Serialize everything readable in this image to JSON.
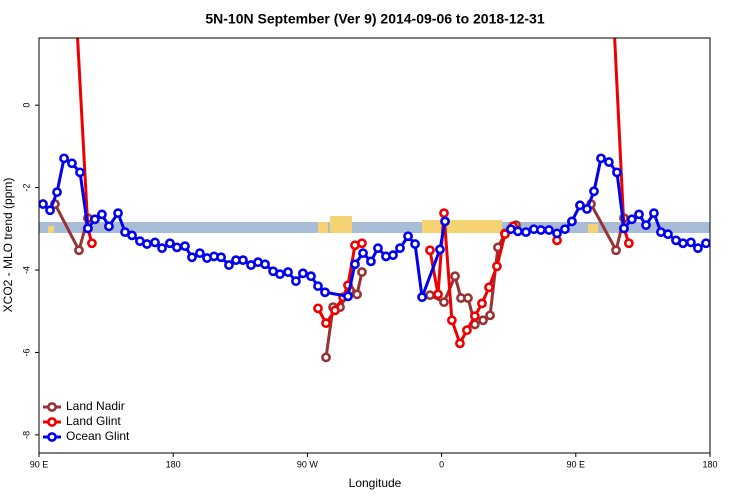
{
  "chart_data": {
    "type": "line",
    "title": "5N-10N September (Ver 9)   2014-09-06 to 2018-12-31",
    "x_label": "Longitude",
    "y_label": "XCO2 - MLO trend (ppm)",
    "xlim": [
      90,
      540
    ],
    "ylim": [
      -8.44,
      1.63
    ],
    "xticks": [
      {
        "value": 90,
        "label": "90 E"
      },
      {
        "value": 180,
        "label": "180"
      },
      {
        "value": 270,
        "label": "90 W"
      },
      {
        "value": 360,
        "label": "0"
      },
      {
        "value": 450,
        "label": "90 E"
      },
      {
        "value": 540,
        "label": "180"
      }
    ],
    "yticks": [
      0,
      -2,
      -4,
      -6,
      -8
    ],
    "legend": "bottom-left",
    "series": [
      {
        "name": "Land Nadir",
        "color": "#993333",
        "x": [
          100.7,
          116.8,
          122.8,
          null,
          282.5,
          287.2,
          291.9,
          298.6,
          303.3,
          306.6,
          null,
          352.2,
          361.6,
          369.0,
          373.0,
          377.7,
          382.3,
          387.8,
          392.5,
          397.8,
          402.5,
          409.9,
          null,
          460.2,
          477.0,
          482.3
        ],
        "values": [
          -2.4,
          -3.52,
          -2.74,
          null,
          -6.12,
          -4.9,
          -4.9,
          -4.49,
          -4.59,
          -4.05,
          null,
          -4.61,
          -4.78,
          -4.15,
          -4.68,
          -4.68,
          -5.32,
          -5.22,
          -5.1,
          -3.45,
          -3.11,
          -2.91,
          null,
          -2.4,
          -3.52,
          -2.74
        ]
      },
      {
        "name": "Land Glint",
        "color": "#ee0000",
        "x": [
          110.8,
          122.8,
          125.5,
          null,
          277.1,
          282.5,
          288.5,
          293.9,
          297.2,
          301.9,
          306.6,
          null,
          352.2,
          357.6,
          361.6,
          366.9,
          372.3,
          377.0,
          382.3,
          387.1,
          391.8,
          397.1,
          402.5,
          407.9,
          null,
          437.4,
          null,
          471.5,
          482.3,
          485.6
        ],
        "values": [
          5,
          -2.99,
          -3.35,
          null,
          -4.93,
          -5.29,
          -4.98,
          -4.66,
          -4.37,
          -3.4,
          -3.35,
          null,
          -3.52,
          -4.59,
          -2.62,
          -5.22,
          -5.78,
          -5.46,
          -5.12,
          -4.81,
          -4.42,
          -3.91,
          -3.13,
          -2.94,
          null,
          -3.28,
          null,
          5,
          -2.99,
          -3.35
        ]
      },
      {
        "name": "Ocean Glint",
        "color": "#0000ee",
        "x": [
          92.7,
          97.4,
          102.1,
          106.8,
          112.1,
          117.5,
          122.8,
          127.5,
          132.2,
          136.9,
          143.0,
          147.7,
          152.4,
          157.7,
          162.4,
          167.8,
          172.5,
          177.8,
          182.5,
          187.9,
          192.6,
          197.9,
          202.7,
          207.4,
          212.1,
          217.4,
          222.1,
          226.8,
          232.2,
          236.9,
          241.6,
          247.0,
          251.6,
          257.0,
          262.3,
          267.0,
          272.4,
          277.1,
          281.8,
          297.2,
          301.9,
          307.3,
          312.6,
          317.3,
          322.7,
          327.4,
          332.1,
          337.5,
          342.2,
          346.9,
          358.9,
          362.3,
          null,
          406.5,
          411.2,
          416.6,
          421.9,
          426.6,
          432.0,
          437.4,
          442.7,
          447.4,
          452.8,
          457.5,
          462.2,
          466.9,
          472.2,
          477.6,
          482.3,
          487.6,
          492.4,
          497.1,
          502.4,
          507.1,
          511.8,
          517.2,
          521.9,
          527.2,
          531.9,
          537.3
        ],
        "values": [
          -2.4,
          -2.55,
          -2.11,
          -1.29,
          -1.41,
          -1.63,
          -2.99,
          -2.77,
          -2.65,
          -2.94,
          -2.62,
          -3.08,
          -3.16,
          -3.3,
          -3.37,
          -3.33,
          -3.47,
          -3.35,
          -3.45,
          -3.42,
          -3.69,
          -3.59,
          -3.71,
          -3.67,
          -3.69,
          -3.88,
          -3.76,
          -3.76,
          -3.88,
          -3.81,
          -3.86,
          -4.03,
          -4.1,
          -4.05,
          -4.27,
          -4.08,
          -4.15,
          -4.39,
          -4.54,
          -4.64,
          -3.86,
          -3.59,
          -3.79,
          -3.47,
          -3.67,
          -3.64,
          -3.47,
          -3.18,
          -3.37,
          -4.66,
          -3.5,
          -2.82,
          null,
          -3.01,
          -3.06,
          -3.08,
          -3.01,
          -3.03,
          -3.03,
          -3.11,
          -3.01,
          -2.82,
          -2.43,
          -2.52,
          -2.09,
          -1.29,
          -1.38,
          -1.63,
          -2.99,
          -2.77,
          -2.65,
          -2.91,
          -2.62,
          -3.08,
          -3.13,
          -3.28,
          -3.35,
          -3.33,
          -3.47,
          -3.35
        ]
      }
    ]
  }
}
